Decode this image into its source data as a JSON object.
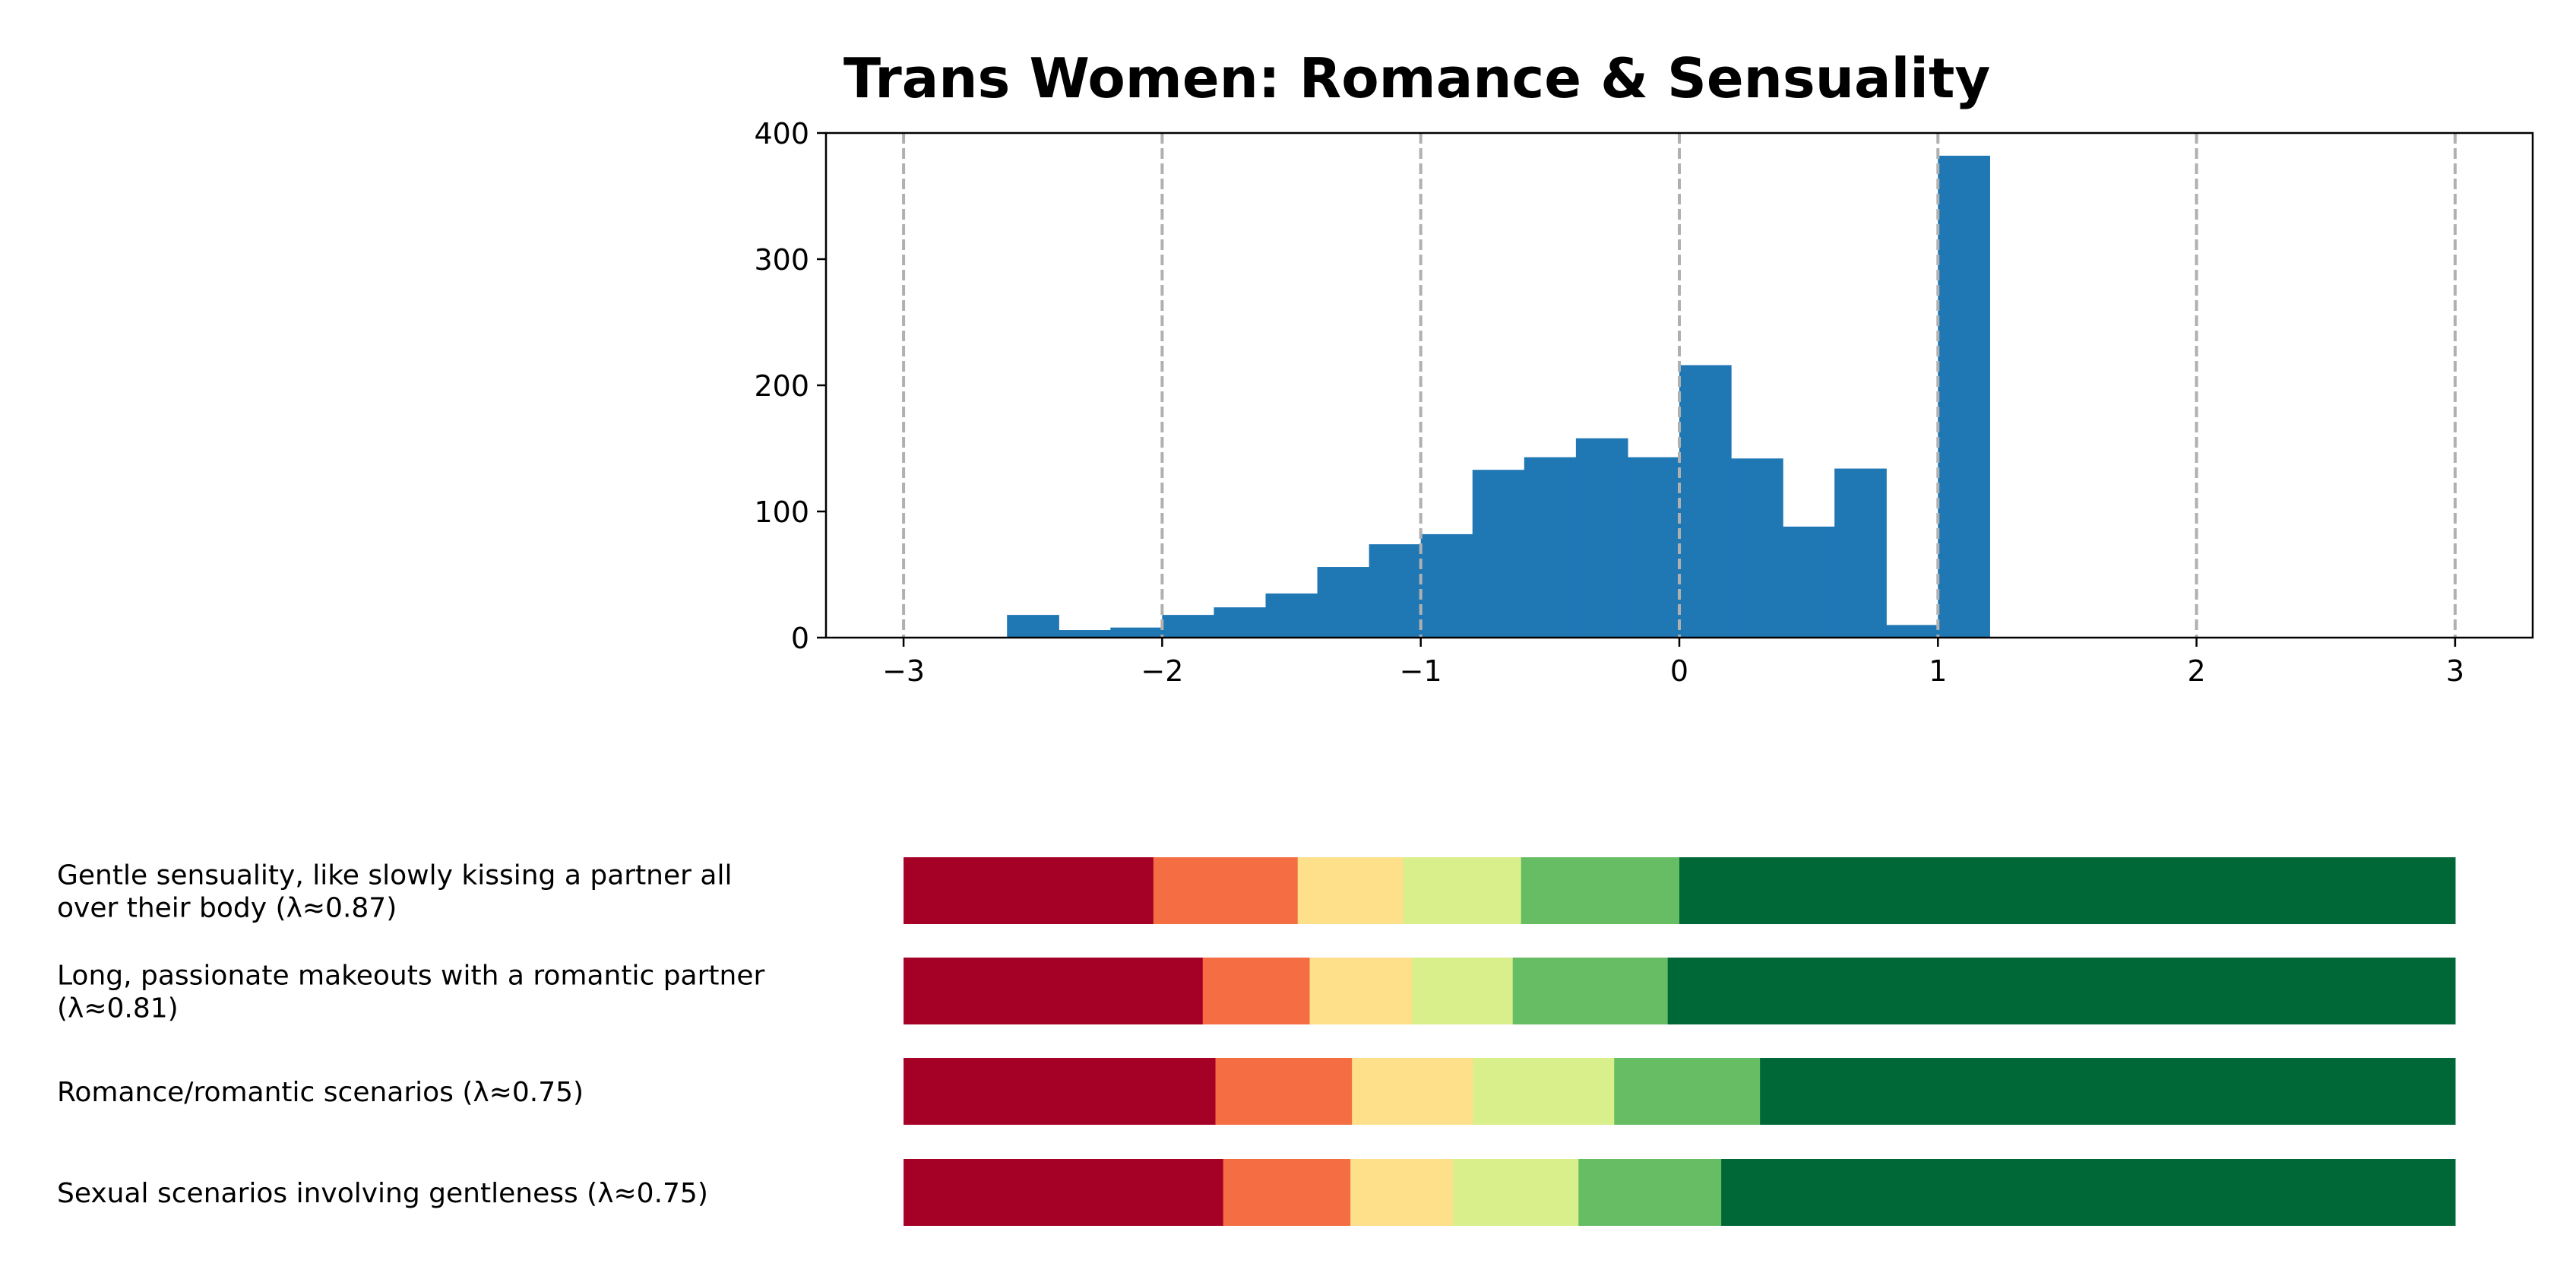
{
  "chart_data": [
    {
      "type": "bar",
      "title": "Trans Women: Romance & Sensuality",
      "xlabel": "",
      "ylabel": "",
      "xlim": [
        -3.3,
        3.3
      ],
      "ylim": [
        0,
        400
      ],
      "xticks": [
        -3,
        -2,
        -1,
        0,
        1,
        2,
        3
      ],
      "xtick_labels": [
        "−3",
        "−2",
        "−1",
        "0",
        "1",
        "2",
        "3"
      ],
      "yticks": [
        0,
        100,
        200,
        300,
        400
      ],
      "ytick_labels": [
        "0",
        "100",
        "200",
        "300",
        "400"
      ],
      "grid": "x-dashed",
      "color": "#1f77b4",
      "bins": [
        {
          "x0": -2.6,
          "x1": -2.4,
          "count": 18
        },
        {
          "x0": -2.4,
          "x1": -2.2,
          "count": 6
        },
        {
          "x0": -2.2,
          "x1": -2.0,
          "count": 8
        },
        {
          "x0": -2.0,
          "x1": -1.8,
          "count": 18
        },
        {
          "x0": -1.8,
          "x1": -1.6,
          "count": 24
        },
        {
          "x0": -1.6,
          "x1": -1.4,
          "count": 35
        },
        {
          "x0": -1.4,
          "x1": -1.2,
          "count": 56
        },
        {
          "x0": -1.2,
          "x1": -1.0,
          "count": 74
        },
        {
          "x0": -1.0,
          "x1": -0.8,
          "count": 82
        },
        {
          "x0": -0.8,
          "x1": -0.6,
          "count": 133
        },
        {
          "x0": -0.6,
          "x1": -0.4,
          "count": 143
        },
        {
          "x0": -0.4,
          "x1": -0.2,
          "count": 158
        },
        {
          "x0": -0.2,
          "x1": 0.0,
          "count": 143
        },
        {
          "x0": 0.0,
          "x1": 0.2,
          "count": 216
        },
        {
          "x0": 0.2,
          "x1": 0.4,
          "count": 142
        },
        {
          "x0": 0.4,
          "x1": 0.6,
          "count": 88
        },
        {
          "x0": 0.6,
          "x1": 0.8,
          "count": 134
        },
        {
          "x0": 0.8,
          "x1": 1.0,
          "count": 10
        },
        {
          "x0": 1.0,
          "x1": 1.2,
          "count": 382
        }
      ]
    },
    {
      "type": "bar",
      "orientation": "horizontal-stacked",
      "title": "",
      "xlabel": "",
      "ylabel": "",
      "segment_colors": [
        "#a50026",
        "#f46d43",
        "#fee08b",
        "#d9ef8b",
        "#66bd63",
        "#006837"
      ],
      "rows": [
        {
          "label": "Gentle sensuality, like slowly kissing a partner all over their body (λ≈0.87)",
          "label_lines": [
            "Gentle sensuality, like slowly kissing a partner all",
            "over their body (λ≈0.87)"
          ],
          "segments": [
            16.1,
            9.3,
            6.8,
            7.6,
            10.2,
            50.0
          ]
        },
        {
          "label": "Long, passionate makeouts with a romantic partner (λ≈0.81)",
          "label_lines": [
            "Long, passionate makeouts with a romantic partner",
            "(λ≈0.81)"
          ],
          "segments": [
            19.3,
            6.9,
            6.6,
            6.5,
            10.0,
            50.8
          ]
        },
        {
          "label": "Romance/romantic scenarios (λ≈0.75)",
          "label_lines": [
            "Romance/romantic scenarios (λ≈0.75)"
          ],
          "segments": [
            20.1,
            8.8,
            7.8,
            9.1,
            9.4,
            44.8
          ]
        },
        {
          "label": "Sexual scenarios involving gentleness (λ≈0.75)",
          "label_lines": [
            "Sexual scenarios involving gentleness (λ≈0.75)"
          ],
          "segments": [
            20.6,
            8.2,
            6.6,
            8.1,
            9.2,
            47.3
          ]
        }
      ]
    }
  ]
}
